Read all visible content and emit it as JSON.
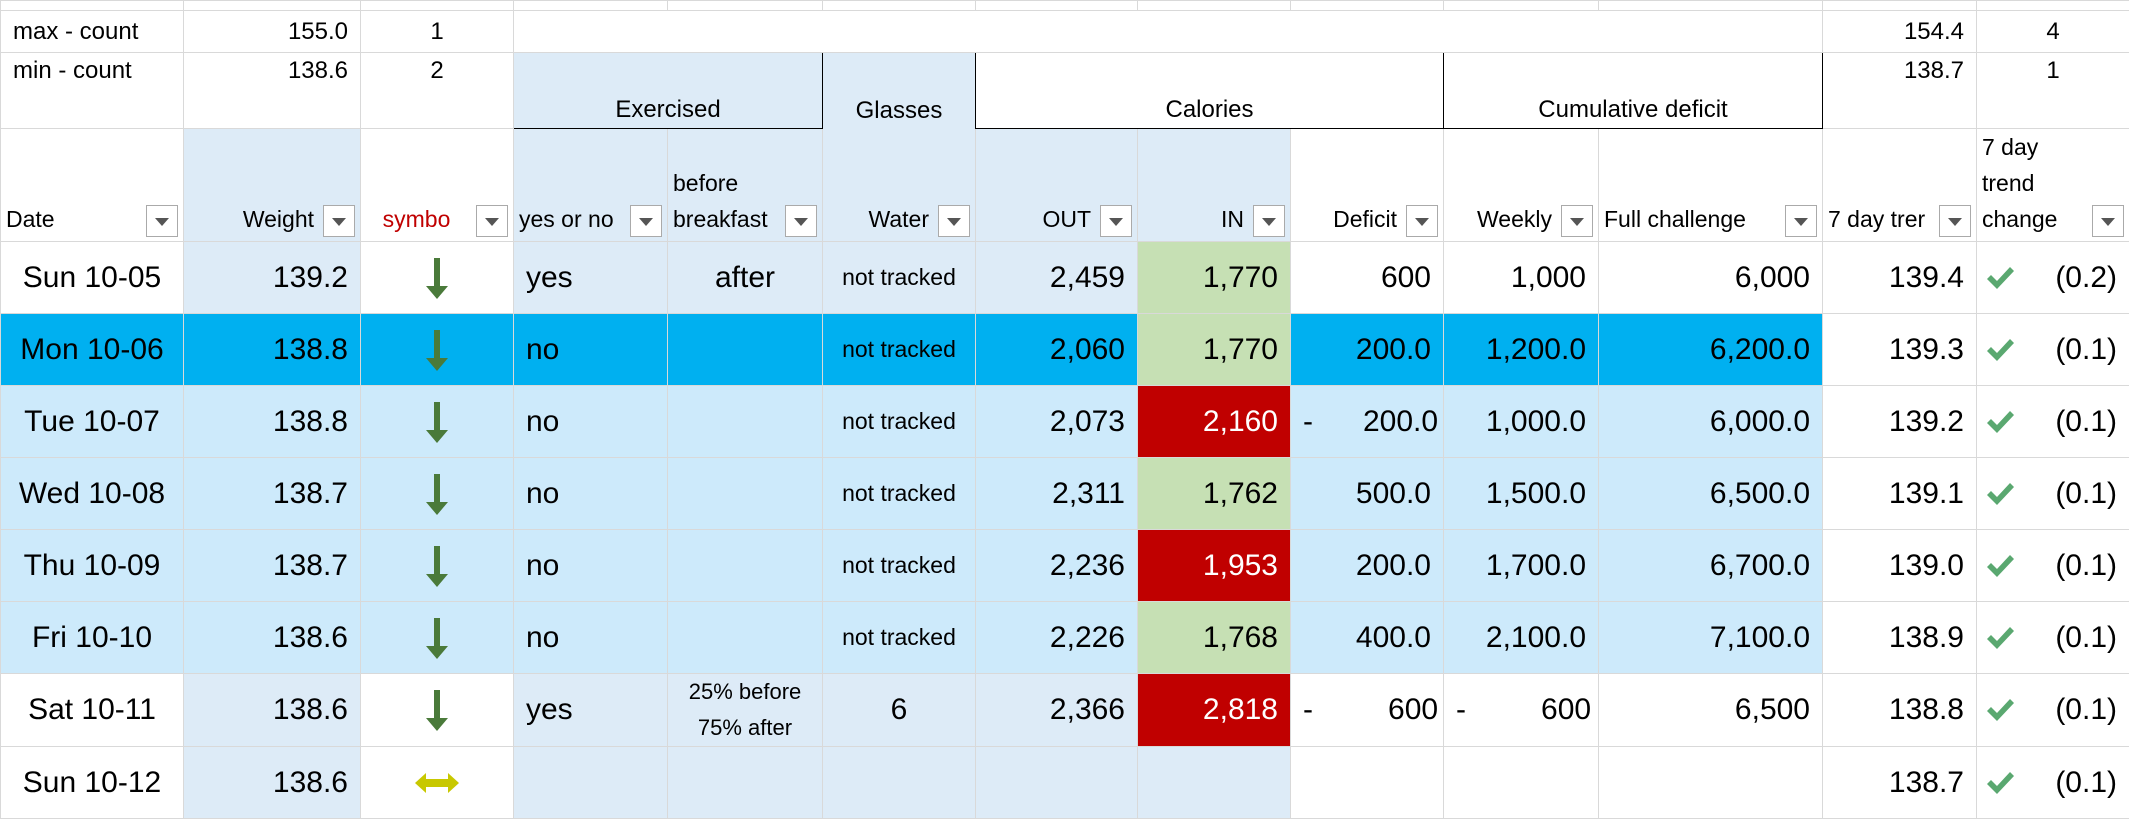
{
  "summary": {
    "rows": [
      [
        "max - count",
        "155.0",
        "1",
        "154.4",
        "4"
      ],
      [
        "min - count",
        "138.6",
        "2",
        "138.7",
        "1"
      ]
    ]
  },
  "group_headers": [
    "Exercised",
    "Glasses",
    "Calories",
    "Cumulative deficit"
  ],
  "headers": [
    "Date",
    "Weight",
    "symbo",
    "yes or no",
    "before breakfast",
    "Water",
    "OUT",
    "IN",
    "Deficit",
    "Weekly",
    "Full challenge",
    "7 day trer",
    "7 day trend change"
  ],
  "rows": [
    [
      "Sun 10-05",
      "139.2",
      "yes",
      "after",
      "not tracked",
      "2,459",
      "1,770",
      "600",
      "1,000",
      "6,000",
      "139.4",
      "(0.2)"
    ],
    [
      "Mon 10-06",
      "138.8",
      "no",
      null,
      "not tracked",
      "2,060",
      "1,770",
      "200.0",
      "1,200.0",
      "6,200.0",
      "139.3",
      "(0.1)"
    ],
    [
      "Tue 10-07",
      "138.8",
      "no",
      null,
      "not tracked",
      "2,073",
      "2,160",
      "-      200.0",
      "1,000.0",
      "6,000.0",
      "139.2",
      "(0.1)"
    ],
    [
      "Wed 10-08",
      "138.7",
      "no",
      null,
      "not tracked",
      "2,311",
      "1,762",
      "500.0",
      "1,500.0",
      "6,500.0",
      "139.1",
      "(0.1)"
    ],
    [
      "Thu 10-09",
      "138.7",
      "no",
      null,
      "not tracked",
      "2,236",
      "1,953",
      "200.0",
      "1,700.0",
      "6,700.0",
      "139.0",
      "(0.1)"
    ],
    [
      "Fri 10-10",
      "138.6",
      "no",
      null,
      "not tracked",
      "2,226",
      "1,768",
      "400.0",
      "2,100.0",
      "7,100.0",
      "138.9",
      "(0.1)"
    ],
    [
      "Sat 10-11",
      "138.6",
      "yes",
      "25% before\n75% after",
      "6",
      "2,366",
      "2,818",
      "-         600",
      "-         600",
      "6,500",
      "138.8",
      "(0.1)"
    ],
    [
      "Sun 10-12",
      "138.6",
      null,
      null,
      null,
      null,
      null,
      null,
      null,
      null,
      "138.7",
      "(0.1)"
    ]
  ]
}
